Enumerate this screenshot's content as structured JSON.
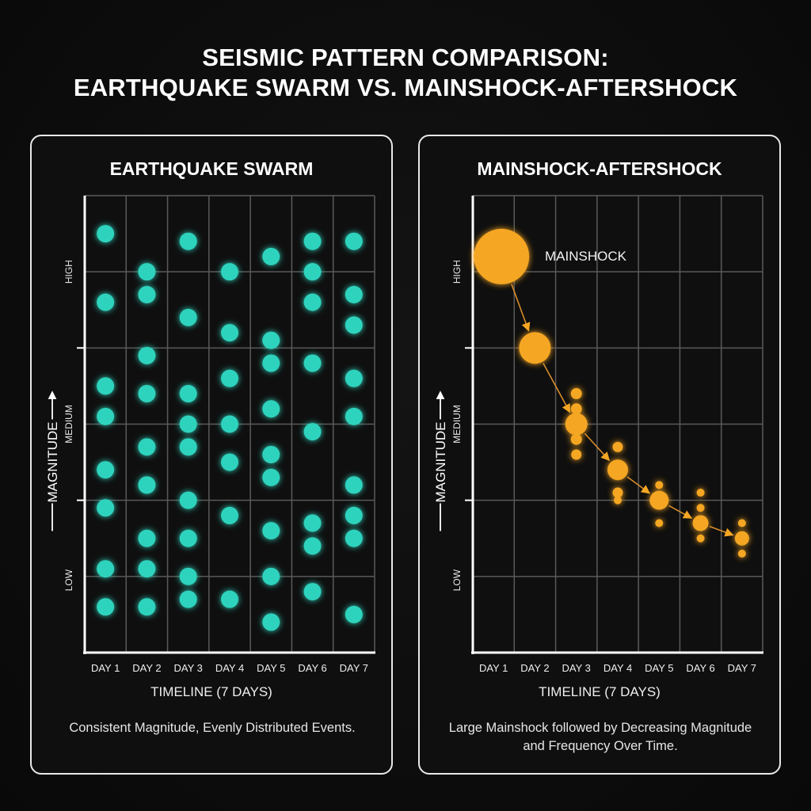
{
  "header": {
    "title_line1": "SEISMIC PATTERN COMPARISON:",
    "title_line2": "EARTHQUAKE SWARM VS. MAINSHOCK-AFTERSHOCK"
  },
  "colors": {
    "swarm": "#2fd3bd",
    "aftershock": "#f5a623",
    "grid": "#5a5a5a",
    "axis": "#ffffff",
    "panel_border": "#e8e8e8",
    "background": "#0c0c0c"
  },
  "panels": {
    "swarm": {
      "title": "EARTHQUAKE SWARM",
      "xlabel": "TIMELINE (7 DAYS)",
      "ylabel": "MAGNITUDE",
      "caption": "Consistent Magnitude, Evenly Distributed Events."
    },
    "aftershock": {
      "title": "MAINSHOCK-AFTERSHOCK",
      "xlabel": "TIMELINE (7 DAYS)",
      "ylabel": "MAGNITUDE",
      "caption": "Large Mainshock followed by Decreasing Magnitude and Frequency Over Time.",
      "annotation": "MAINSHOCK"
    }
  },
  "chart_data": [
    {
      "type": "scatter",
      "title": "EARTHQUAKE SWARM",
      "xlabel": "TIMELINE (7 DAYS)",
      "ylabel": "MAGNITUDE",
      "categories": [
        "DAY 1",
        "DAY 2",
        "DAY 3",
        "DAY 4",
        "DAY 5",
        "DAY 6",
        "DAY 7"
      ],
      "y_ticks": [
        "LOW",
        "MEDIUM",
        "HIGH"
      ],
      "ylim": [
        0,
        6
      ],
      "grid": true,
      "note": "y values in grid-row units (0 = bottom axis, 6 = top); all events equal size",
      "series": [
        {
          "name": "Day 1",
          "day": 1,
          "values": [
            5.5,
            4.6,
            3.5,
            3.1,
            2.4,
            1.9,
            1.1,
            0.6
          ]
        },
        {
          "name": "Day 2",
          "day": 2,
          "values": [
            5.0,
            4.7,
            3.9,
            3.4,
            2.7,
            2.2,
            1.5,
            1.1,
            0.6
          ]
        },
        {
          "name": "Day 3",
          "day": 3,
          "values": [
            5.4,
            4.4,
            3.4,
            3.0,
            2.7,
            2.0,
            1.5,
            1.0,
            0.7
          ]
        },
        {
          "name": "Day 4",
          "day": 4,
          "values": [
            5.0,
            4.2,
            3.6,
            3.0,
            2.5,
            1.8,
            0.7
          ]
        },
        {
          "name": "Day 5",
          "day": 5,
          "values": [
            5.2,
            4.1,
            3.8,
            3.2,
            2.6,
            2.3,
            1.6,
            1.0,
            0.4
          ]
        },
        {
          "name": "Day 6",
          "day": 6,
          "values": [
            5.4,
            5.0,
            4.6,
            3.8,
            2.9,
            1.7,
            1.4,
            0.8
          ]
        },
        {
          "name": "Day 7",
          "day": 7,
          "values": [
            5.4,
            4.7,
            4.3,
            3.6,
            3.1,
            2.2,
            1.8,
            1.5,
            0.5
          ]
        }
      ]
    },
    {
      "type": "scatter",
      "title": "MAINSHOCK-AFTERSHOCK",
      "xlabel": "TIMELINE (7 DAYS)",
      "ylabel": "MAGNITUDE",
      "categories": [
        "DAY 1",
        "DAY 2",
        "DAY 3",
        "DAY 4",
        "DAY 5",
        "DAY 6",
        "DAY 7"
      ],
      "y_ticks": [
        "LOW",
        "MEDIUM",
        "HIGH"
      ],
      "ylim": [
        0,
        6
      ],
      "grid": true,
      "annotations": [
        {
          "text": "MAINSHOCK",
          "day": 1
        }
      ],
      "note": "y in grid-row units; size = relative bubble radius; arrows connect main events day to day",
      "main_events": [
        {
          "day": 1,
          "y": 5.2,
          "size": 35
        },
        {
          "day": 2,
          "y": 4.0,
          "size": 20
        },
        {
          "day": 3,
          "y": 3.0,
          "size": 14
        },
        {
          "day": 4,
          "y": 2.4,
          "size": 13
        },
        {
          "day": 5,
          "y": 2.0,
          "size": 12
        },
        {
          "day": 6,
          "y": 1.7,
          "size": 10
        },
        {
          "day": 7,
          "y": 1.5,
          "size": 9
        }
      ],
      "minor_events": [
        {
          "day": 3,
          "y": 3.4,
          "size": 7
        },
        {
          "day": 3,
          "y": 3.2,
          "size": 7
        },
        {
          "day": 3,
          "y": 2.8,
          "size": 7
        },
        {
          "day": 3,
          "y": 2.6,
          "size": 6.5
        },
        {
          "day": 4,
          "y": 2.7,
          "size": 6.5
        },
        {
          "day": 4,
          "y": 2.1,
          "size": 6.5
        },
        {
          "day": 4,
          "y": 2.0,
          "size": 5
        },
        {
          "day": 5,
          "y": 2.2,
          "size": 5
        },
        {
          "day": 5,
          "y": 1.7,
          "size": 5
        },
        {
          "day": 6,
          "y": 2.1,
          "size": 5
        },
        {
          "day": 6,
          "y": 1.9,
          "size": 5
        },
        {
          "day": 6,
          "y": 1.5,
          "size": 5
        },
        {
          "day": 7,
          "y": 1.7,
          "size": 5
        },
        {
          "day": 7,
          "y": 1.3,
          "size": 5
        }
      ]
    }
  ]
}
